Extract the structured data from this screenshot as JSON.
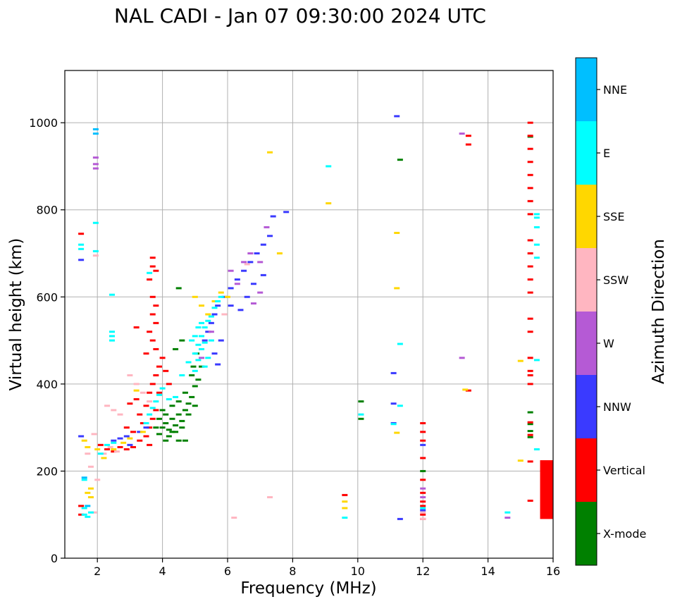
{
  "chart_data": {
    "type": "scatter",
    "title": "NAL CADI - Jan 07 09:30:00 2024 UTC",
    "xlabel": "Frequency (MHz)",
    "ylabel": "Virtual height (km)",
    "xlim": [
      1,
      16
    ],
    "ylim": [
      0,
      1120
    ],
    "xticks": [
      2,
      4,
      6,
      8,
      10,
      12,
      14,
      16
    ],
    "yticks": [
      0,
      200,
      400,
      600,
      800,
      1000
    ],
    "grid": true,
    "colorbar": {
      "title": "Azimuth Direction",
      "categories": [
        {
          "name": "X-mode",
          "color": "#008000"
        },
        {
          "name": "Vertical",
          "color": "#ff0000"
        },
        {
          "name": "NNW",
          "color": "#3a3aff"
        },
        {
          "name": "W",
          "color": "#b55ad5"
        },
        {
          "name": "SSW",
          "color": "#ffb6c1"
        },
        {
          "name": "SSE",
          "color": "#ffd700"
        },
        {
          "name": "E",
          "color": "#00ffff"
        },
        {
          "name": "NNE",
          "color": "#00bfff"
        }
      ]
    },
    "series": [
      {
        "name": "X-mode",
        "points": [
          [
            3.9,
            285
          ],
          [
            4.0,
            300
          ],
          [
            4.1,
            310
          ],
          [
            4.2,
            295
          ],
          [
            4.3,
            320
          ],
          [
            4.4,
            305
          ],
          [
            4.5,
            330
          ],
          [
            4.6,
            315
          ],
          [
            4.7,
            340
          ],
          [
            4.8,
            355
          ],
          [
            4.9,
            370
          ],
          [
            5.0,
            395
          ],
          [
            5.1,
            410
          ],
          [
            4.2,
            280
          ],
          [
            4.4,
            290
          ],
          [
            4.6,
            300
          ],
          [
            4.8,
            330
          ],
          [
            5.0,
            350
          ],
          [
            4.1,
            330
          ],
          [
            4.3,
            350
          ],
          [
            4.5,
            360
          ],
          [
            4.7,
            380
          ],
          [
            4.9,
            420
          ],
          [
            5.05,
            470
          ],
          [
            4.95,
            440
          ],
          [
            4.5,
            620
          ],
          [
            4.6,
            500
          ],
          [
            4.4,
            480
          ],
          [
            3.8,
            300
          ],
          [
            3.9,
            320
          ],
          [
            4.0,
            340
          ],
          [
            4.1,
            270
          ],
          [
            4.3,
            290
          ],
          [
            4.5,
            270
          ],
          [
            10.1,
            360
          ],
          [
            10.1,
            320
          ],
          [
            11.3,
            915
          ],
          [
            12.0,
            200
          ],
          [
            15.3,
            335
          ],
          [
            15.3,
            308
          ],
          [
            15.3,
            292
          ],
          [
            15.3,
            278
          ],
          [
            15.3,
            968
          ],
          [
            5.2,
            440
          ],
          [
            4.7,
            270
          ]
        ]
      },
      {
        "name": "Vertical",
        "points": [
          [
            1.5,
            745
          ],
          [
            1.5,
            100
          ],
          [
            1.5,
            120
          ],
          [
            2.1,
            260
          ],
          [
            2.3,
            250
          ],
          [
            2.5,
            245
          ],
          [
            2.7,
            255
          ],
          [
            2.9,
            250
          ],
          [
            3.1,
            255
          ],
          [
            3.3,
            270
          ],
          [
            3.5,
            280
          ],
          [
            3.6,
            300
          ],
          [
            3.7,
            320
          ],
          [
            3.8,
            340
          ],
          [
            3.5,
            350
          ],
          [
            3.6,
            380
          ],
          [
            3.7,
            400
          ],
          [
            3.8,
            420
          ],
          [
            3.9,
            440
          ],
          [
            4.0,
            460
          ],
          [
            3.7,
            690
          ],
          [
            3.7,
            670
          ],
          [
            3.8,
            660
          ],
          [
            3.6,
            640
          ],
          [
            3.7,
            600
          ],
          [
            3.8,
            580
          ],
          [
            3.7,
            560
          ],
          [
            3.8,
            540
          ],
          [
            3.6,
            520
          ],
          [
            3.7,
            500
          ],
          [
            3.8,
            480
          ],
          [
            3.5,
            470
          ],
          [
            3.3,
            330
          ],
          [
            3.1,
            290
          ],
          [
            2.9,
            300
          ],
          [
            3.2,
            365
          ],
          [
            3.0,
            355
          ],
          [
            3.2,
            530
          ],
          [
            4.1,
            430
          ],
          [
            4.2,
            400
          ],
          [
            3.9,
            380
          ],
          [
            3.4,
            310
          ],
          [
            3.6,
            260
          ],
          [
            12.0,
            310
          ],
          [
            12.0,
            290
          ],
          [
            12.0,
            270
          ],
          [
            12.0,
            230
          ],
          [
            12.0,
            180
          ],
          [
            12.0,
            150
          ],
          [
            12.0,
            130
          ],
          [
            12.0,
            120
          ],
          [
            12.0,
            100
          ],
          [
            12.0,
            90
          ],
          [
            9.6,
            145
          ],
          [
            13.4,
            970
          ],
          [
            13.4,
            950
          ],
          [
            13.4,
            385
          ],
          [
            15.3,
            1000
          ],
          [
            15.3,
            970
          ],
          [
            15.3,
            940
          ],
          [
            15.3,
            910
          ],
          [
            15.3,
            880
          ],
          [
            15.3,
            850
          ],
          [
            15.3,
            820
          ],
          [
            15.3,
            790
          ],
          [
            15.3,
            730
          ],
          [
            15.3,
            700
          ],
          [
            15.3,
            670
          ],
          [
            15.3,
            640
          ],
          [
            15.3,
            610
          ],
          [
            15.3,
            550
          ],
          [
            15.3,
            520
          ],
          [
            15.3,
            460
          ],
          [
            15.3,
            430
          ],
          [
            15.3,
            420
          ],
          [
            15.3,
            400
          ],
          [
            15.3,
            312
          ],
          [
            15.3,
            283
          ],
          [
            15.3,
            222
          ],
          [
            15.3,
            132
          ]
        ]
      },
      {
        "name": "NNW",
        "points": [
          [
            1.5,
            685
          ],
          [
            1.5,
            280
          ],
          [
            2.5,
            270
          ],
          [
            2.7,
            275
          ],
          [
            2.9,
            280
          ],
          [
            3.0,
            260
          ],
          [
            3.3,
            290
          ],
          [
            3.5,
            300
          ],
          [
            5.5,
            540
          ],
          [
            5.6,
            560
          ],
          [
            5.7,
            580
          ],
          [
            5.9,
            600
          ],
          [
            6.1,
            620
          ],
          [
            6.3,
            640
          ],
          [
            6.5,
            660
          ],
          [
            6.7,
            680
          ],
          [
            6.9,
            700
          ],
          [
            7.1,
            720
          ],
          [
            7.3,
            740
          ],
          [
            6.1,
            580
          ],
          [
            6.4,
            570
          ],
          [
            6.6,
            600
          ],
          [
            6.8,
            630
          ],
          [
            7.1,
            650
          ],
          [
            7.4,
            785
          ],
          [
            7.8,
            795
          ],
          [
            11.2,
            1015
          ],
          [
            11.1,
            425
          ],
          [
            11.1,
            355
          ],
          [
            11.1,
            310
          ],
          [
            11.3,
            90
          ],
          [
            12.0,
            260
          ],
          [
            12.0,
            110
          ],
          [
            5.3,
            500
          ],
          [
            5.4,
            520
          ],
          [
            5.6,
            470
          ],
          [
            5.7,
            445
          ],
          [
            5.8,
            500
          ]
        ]
      },
      {
        "name": "W",
        "points": [
          [
            1.95,
            920
          ],
          [
            1.95,
            905
          ],
          [
            1.95,
            895
          ],
          [
            6.1,
            660
          ],
          [
            6.3,
            630
          ],
          [
            6.5,
            680
          ],
          [
            6.7,
            700
          ],
          [
            7.0,
            680
          ],
          [
            7.2,
            760
          ],
          [
            7.0,
            610
          ],
          [
            13.2,
            975
          ],
          [
            13.2,
            460
          ],
          [
            14.6,
            93
          ],
          [
            12.0,
            160
          ],
          [
            12.0,
            140
          ],
          [
            5.2,
            460
          ],
          [
            5.5,
            520
          ],
          [
            6.8,
            585
          ]
        ]
      },
      {
        "name": "SSW",
        "points": [
          [
            1.95,
            695
          ],
          [
            2.3,
            350
          ],
          [
            2.5,
            340
          ],
          [
            2.7,
            330
          ],
          [
            3.0,
            420
          ],
          [
            3.2,
            400
          ],
          [
            3.4,
            380
          ],
          [
            3.6,
            360
          ],
          [
            2.2,
            240
          ],
          [
            2.4,
            255
          ],
          [
            2.6,
            245
          ],
          [
            1.9,
            285
          ],
          [
            2.0,
            180
          ],
          [
            1.8,
            210
          ],
          [
            1.7,
            240
          ],
          [
            1.9,
            105
          ],
          [
            6.2,
            93
          ],
          [
            7.3,
            140
          ],
          [
            6.6,
            675
          ],
          [
            5.9,
            560
          ],
          [
            12.0,
            105
          ],
          [
            12.0,
            90
          ]
        ]
      },
      {
        "name": "SSE",
        "points": [
          [
            1.6,
            270
          ],
          [
            1.7,
            255
          ],
          [
            1.8,
            160
          ],
          [
            1.7,
            150
          ],
          [
            1.8,
            140
          ],
          [
            2.0,
            250
          ],
          [
            2.2,
            230
          ],
          [
            2.5,
            250
          ],
          [
            2.8,
            265
          ],
          [
            3.0,
            275
          ],
          [
            3.2,
            385
          ],
          [
            3.4,
            290
          ],
          [
            5.0,
            600
          ],
          [
            5.2,
            580
          ],
          [
            5.4,
            560
          ],
          [
            5.6,
            590
          ],
          [
            5.8,
            610
          ],
          [
            6.0,
            600
          ],
          [
            7.3,
            932
          ],
          [
            7.6,
            700
          ],
          [
            9.1,
            815
          ],
          [
            11.2,
            747
          ],
          [
            11.2,
            620
          ],
          [
            11.2,
            288
          ],
          [
            9.6,
            130
          ],
          [
            9.6,
            115
          ],
          [
            13.3,
            387
          ],
          [
            15.0,
            453
          ],
          [
            15.0,
            224
          ]
        ]
      },
      {
        "name": "E",
        "points": [
          [
            1.5,
            720
          ],
          [
            1.5,
            710
          ],
          [
            1.6,
            180
          ],
          [
            1.6,
            115
          ],
          [
            1.6,
            100
          ],
          [
            1.7,
            95
          ],
          [
            1.8,
            105
          ],
          [
            1.95,
            770
          ],
          [
            1.95,
            705
          ],
          [
            2.1,
            240
          ],
          [
            2.3,
            260
          ],
          [
            2.5,
            265
          ],
          [
            2.45,
            605
          ],
          [
            2.45,
            520
          ],
          [
            2.45,
            510
          ],
          [
            2.45,
            500
          ],
          [
            3.5,
            310
          ],
          [
            3.6,
            330
          ],
          [
            3.7,
            345
          ],
          [
            3.8,
            360
          ],
          [
            3.9,
            375
          ],
          [
            4.0,
            390
          ],
          [
            4.2,
            365
          ],
          [
            4.4,
            370
          ],
          [
            4.6,
            420
          ],
          [
            4.8,
            450
          ],
          [
            5.0,
            470
          ],
          [
            5.1,
            490
          ],
          [
            5.2,
            510
          ],
          [
            5.3,
            530
          ],
          [
            5.4,
            545
          ],
          [
            5.5,
            555
          ],
          [
            5.6,
            575
          ],
          [
            5.7,
            590
          ],
          [
            5.8,
            600
          ],
          [
            5.0,
            430
          ],
          [
            5.1,
            455
          ],
          [
            5.2,
            480
          ],
          [
            5.3,
            495
          ],
          [
            5.4,
            460
          ],
          [
            5.5,
            500
          ],
          [
            5.3,
            440
          ],
          [
            5.0,
            510
          ],
          [
            5.1,
            530
          ],
          [
            4.9,
            500
          ],
          [
            5.2,
            540
          ],
          [
            3.6,
            655
          ],
          [
            9.1,
            900
          ],
          [
            11.3,
            492
          ],
          [
            11.3,
            350
          ],
          [
            11.1,
            308
          ],
          [
            10.1,
            330
          ],
          [
            9.6,
            93
          ],
          [
            12.0,
            115
          ],
          [
            14.6,
            105
          ],
          [
            15.5,
            790
          ],
          [
            15.5,
            782
          ],
          [
            15.5,
            760
          ],
          [
            15.5,
            720
          ],
          [
            15.5,
            690
          ],
          [
            15.5,
            455
          ],
          [
            15.5,
            250
          ]
        ]
      },
      {
        "name": "NNE",
        "points": [
          [
            1.95,
            985
          ],
          [
            1.95,
            975
          ],
          [
            1.6,
            185
          ],
          [
            1.7,
            120
          ]
        ]
      }
    ],
    "bars": [
      {
        "name": "Vertical",
        "x0": 15.6,
        "x1": 16.0,
        "y0": 90,
        "y1": 225
      }
    ]
  }
}
